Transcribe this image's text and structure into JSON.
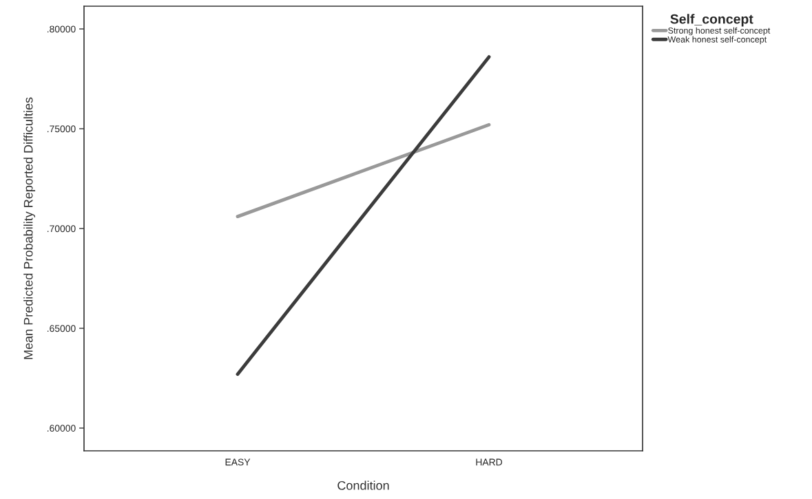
{
  "chart_data": {
    "type": "line",
    "xlabel": "Condition",
    "ylabel": "Mean Predicted Probability Reported Difficulties",
    "legend_title": "Self_concept",
    "categories": [
      "EASY",
      "HARD"
    ],
    "series": [
      {
        "name": "Strong honest self-concept",
        "color": "#999999",
        "values": [
          0.706,
          0.752
        ]
      },
      {
        "name": "Weak honest self-concept",
        "color": "#3c3c3c",
        "values": [
          0.627,
          0.786
        ]
      }
    ],
    "ylim": [
      0.5886,
      0.8114
    ],
    "yticks": [
      {
        "value": 0.6,
        "label": ".60000"
      },
      {
        "value": 0.65,
        "label": ".65000"
      },
      {
        "value": 0.7,
        "label": ".70000"
      },
      {
        "value": 0.75,
        "label": ".75000"
      },
      {
        "value": 0.8,
        "label": ".80000"
      }
    ],
    "grid": false,
    "legend": "top right",
    "marker": "none",
    "line_style": "solid"
  }
}
